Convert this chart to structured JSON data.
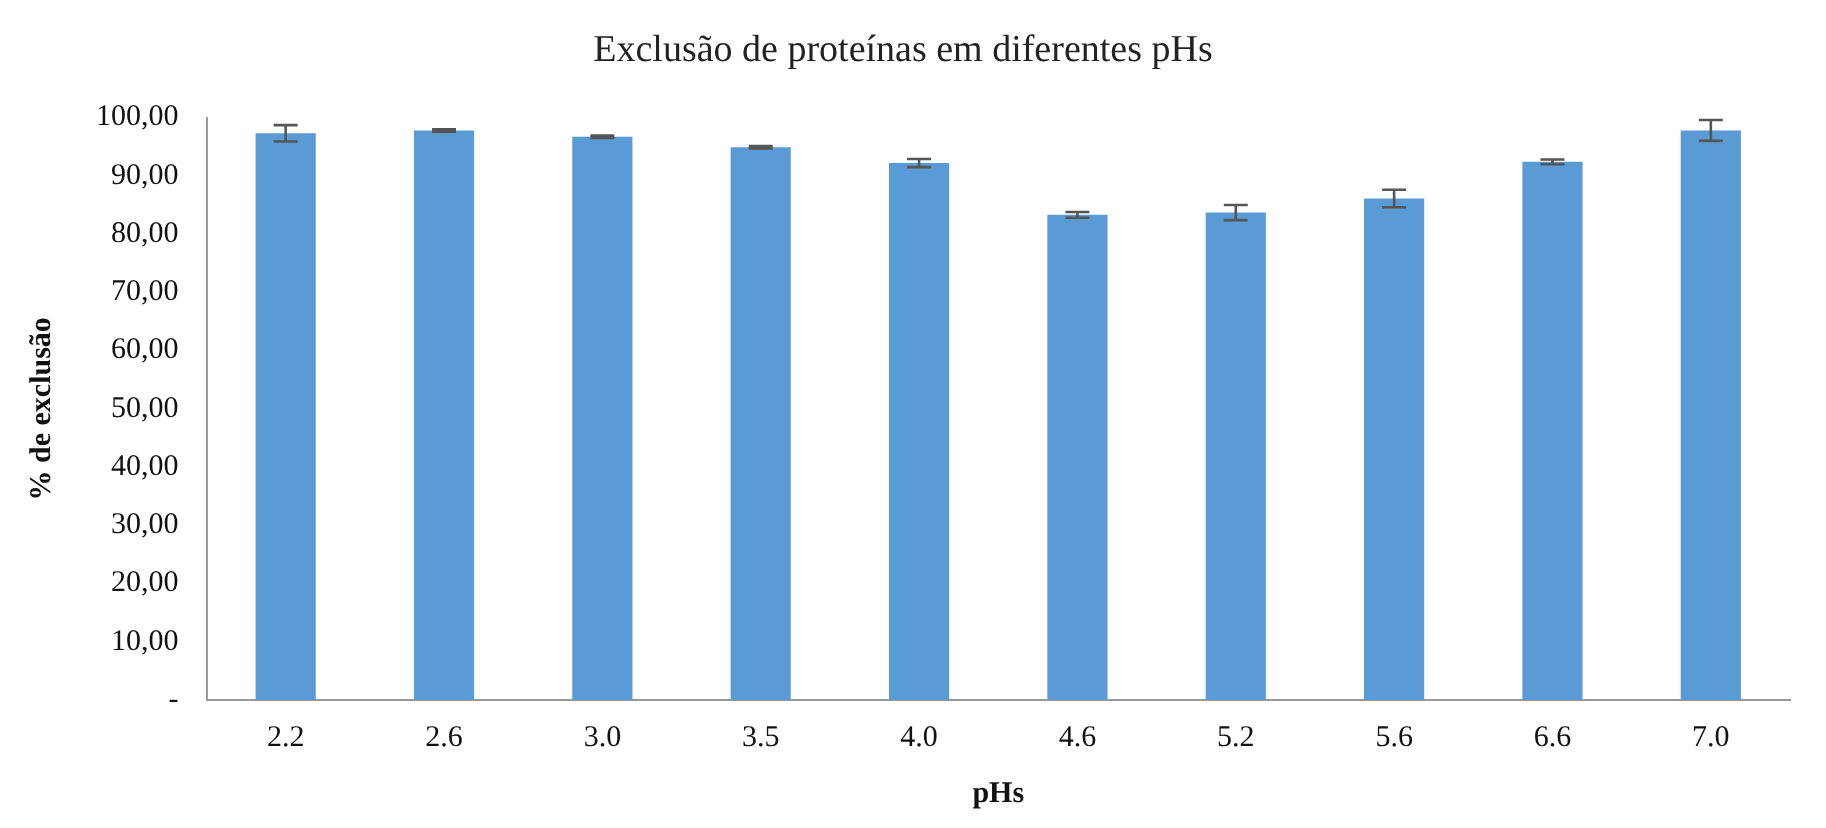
{
  "chart_data": {
    "type": "bar",
    "title": "Exclusão de proteínas em diferentes pHs",
    "xlabel": "pHs",
    "ylabel": "% de exclusão",
    "categories": [
      "2.2",
      "2.6",
      "3.0",
      "3.5",
      "4.0",
      "4.6",
      "5.2",
      "5.6",
      "6.6",
      "7.0"
    ],
    "values": [
      97.3,
      97.8,
      96.7,
      94.9,
      92.2,
      83.3,
      83.7,
      86.1,
      92.4,
      97.8
    ],
    "errors": [
      1.4,
      0.2,
      0.2,
      0.2,
      0.7,
      0.5,
      1.3,
      1.5,
      0.4,
      1.8
    ],
    "color": "#5b9bd5",
    "ylim": [
      0,
      100
    ],
    "yticks": [
      {
        "value": 0,
        "label": "-"
      },
      {
        "value": 10,
        "label": "10,00"
      },
      {
        "value": 20,
        "label": "20,00"
      },
      {
        "value": 30,
        "label": "30,00"
      },
      {
        "value": 40,
        "label": "40,00"
      },
      {
        "value": 50,
        "label": "50,00"
      },
      {
        "value": 60,
        "label": "60,00"
      },
      {
        "value": 70,
        "label": "70,00"
      },
      {
        "value": 80,
        "label": "80,00"
      },
      {
        "value": 90,
        "label": "90,00"
      },
      {
        "value": 100,
        "label": "100,00"
      }
    ],
    "grid": false,
    "legend": false
  }
}
